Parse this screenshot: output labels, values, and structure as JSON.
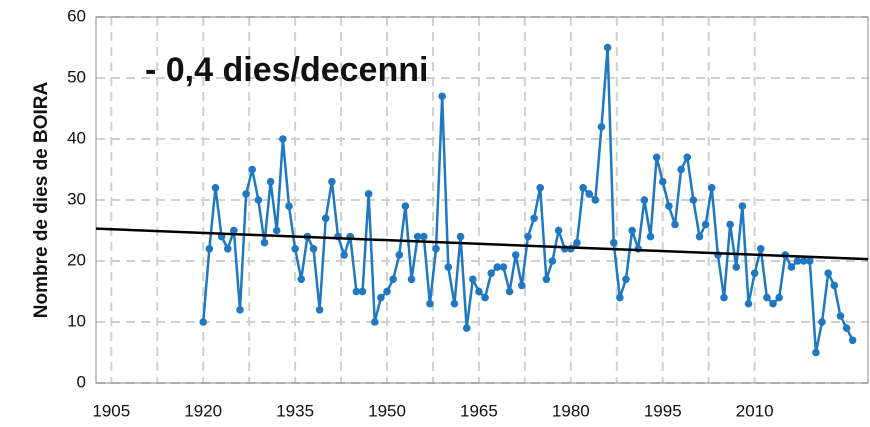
{
  "chart_data": {
    "type": "line",
    "y_label": "Nombre de dies de BOIRA",
    "annotation": "- 0,4 dies/decenni",
    "x": [
      1920,
      1921,
      1922,
      1923,
      1924,
      1925,
      1926,
      1927,
      1928,
      1929,
      1930,
      1931,
      1932,
      1933,
      1934,
      1935,
      1936,
      1937,
      1938,
      1939,
      1940,
      1941,
      1942,
      1943,
      1944,
      1945,
      1946,
      1947,
      1948,
      1949,
      1950,
      1951,
      1952,
      1953,
      1954,
      1955,
      1956,
      1957,
      1958,
      1959,
      1960,
      1961,
      1962,
      1963,
      1964,
      1965,
      1966,
      1967,
      1968,
      1969,
      1970,
      1971,
      1972,
      1973,
      1974,
      1975,
      1976,
      1977,
      1978,
      1979,
      1980,
      1981,
      1982,
      1983,
      1984,
      1985,
      1986,
      1987,
      1988,
      1989,
      1990,
      1991,
      1992,
      1993,
      1994,
      1995,
      1996,
      1997,
      1998,
      1999,
      2000,
      2001,
      2002,
      2003,
      2004,
      2005,
      2006,
      2007,
      2008,
      2009,
      2010,
      2011,
      2012,
      2013,
      2014,
      2015,
      2016,
      2017,
      2018,
      2019,
      2020,
      2021,
      2022,
      2023,
      2024,
      2025,
      2026
    ],
    "series": [
      {
        "name": "Dies de boira",
        "color": "#1f78c1",
        "values": [
          10,
          22,
          32,
          24,
          22,
          25,
          12,
          31,
          35,
          30,
          23,
          33,
          25,
          40,
          29,
          22,
          17,
          24,
          22,
          12,
          27,
          33,
          24,
          21,
          24,
          15,
          15,
          31,
          10,
          14,
          15,
          17,
          21,
          29,
          17,
          24,
          24,
          13,
          22,
          47,
          19,
          13,
          24,
          9,
          17,
          15,
          14,
          18,
          19,
          19,
          15,
          21,
          16,
          24,
          27,
          32,
          17,
          20,
          25,
          22,
          22,
          23,
          32,
          31,
          30,
          42,
          55,
          23,
          14,
          17,
          25,
          22,
          30,
          24,
          37,
          33,
          29,
          26,
          35,
          37,
          30,
          24,
          26,
          32,
          21,
          14,
          26,
          19,
          29,
          13,
          18,
          22,
          14,
          13,
          14,
          21,
          19,
          20,
          20,
          20,
          5,
          10,
          18,
          16,
          11,
          9,
          7
        ]
      }
    ],
    "trend": {
      "color": "#000000",
      "x": [
        1902.5,
        2028.5
      ],
      "values": [
        25.3,
        20.3
      ]
    },
    "xlim": [
      1902.5,
      2028.5
    ],
    "xticks": [
      1905,
      1920,
      1935,
      1950,
      1965,
      1980,
      1995,
      2010
    ],
    "ylim": [
      0,
      60
    ],
    "yticks": [
      0,
      10,
      20,
      30,
      40,
      50,
      60
    ],
    "grid": true
  }
}
